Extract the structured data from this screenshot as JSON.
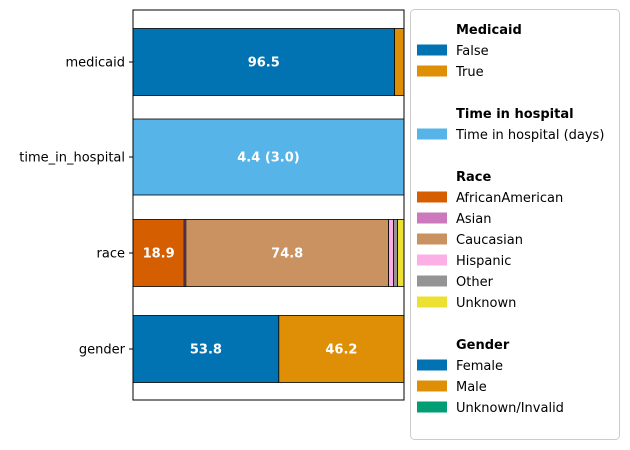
{
  "chart_data": {
    "type": "bar",
    "orientation": "horizontal",
    "stacked": true,
    "xlim": [
      0,
      100
    ],
    "grid": false,
    "legend_placement": "right",
    "categories": [
      "medicaid",
      "time_in_hospital",
      "race",
      "gender"
    ],
    "rows": [
      {
        "category": "medicaid",
        "segments": [
          {
            "legend_group": 0,
            "label": "False",
            "value": 96.5,
            "color": "#0173b2",
            "text": "96.5"
          },
          {
            "legend_group": 0,
            "label": "True",
            "value": 3.5,
            "color": "#de8f05",
            "text": ""
          }
        ]
      },
      {
        "category": "time_in_hospital",
        "segments": [
          {
            "legend_group": 1,
            "label": "Time in hospital (days)",
            "value": 100,
            "color": "#56b4e9",
            "text": "4.4 (3.0)"
          }
        ]
      },
      {
        "category": "race",
        "segments": [
          {
            "legend_group": 2,
            "label": "AfricanAmerican",
            "value": 18.9,
            "color": "#d55e00",
            "text": "18.9"
          },
          {
            "legend_group": 2,
            "label": "Asian",
            "value": 0.6,
            "color": "#cc78bc",
            "text": ""
          },
          {
            "legend_group": 2,
            "label": "Caucasian",
            "value": 74.8,
            "color": "#ca9161",
            "text": "74.8"
          },
          {
            "legend_group": 2,
            "label": "Hispanic",
            "value": 1.8,
            "color": "#fbafe4",
            "text": ""
          },
          {
            "legend_group": 2,
            "label": "Other",
            "value": 1.5,
            "color": "#949494",
            "text": ""
          },
          {
            "legend_group": 2,
            "label": "Unknown",
            "value": 2.4,
            "color": "#ece133",
            "text": ""
          }
        ]
      },
      {
        "category": "gender",
        "segments": [
          {
            "legend_group": 3,
            "label": "Female",
            "value": 53.8,
            "color": "#0173b2",
            "text": "53.8"
          },
          {
            "legend_group": 3,
            "label": "Male",
            "value": 46.2,
            "color": "#de8f05",
            "text": "46.2"
          },
          {
            "legend_group": 3,
            "label": "Unknown/Invalid",
            "value": 0.0,
            "color": "#029e73",
            "text": ""
          }
        ]
      }
    ],
    "legend": [
      {
        "title": "Medicaid",
        "items": [
          {
            "label": "False",
            "color": "#0173b2"
          },
          {
            "label": "True",
            "color": "#de8f05"
          }
        ]
      },
      {
        "title": "Time in hospital",
        "items": [
          {
            "label": "Time in hospital (days)",
            "color": "#56b4e9"
          }
        ]
      },
      {
        "title": "Race",
        "items": [
          {
            "label": "AfricanAmerican",
            "color": "#d55e00"
          },
          {
            "label": "Asian",
            "color": "#cc78bc"
          },
          {
            "label": "Caucasian",
            "color": "#ca9161"
          },
          {
            "label": "Hispanic",
            "color": "#fbafe4"
          },
          {
            "label": "Other",
            "color": "#949494"
          },
          {
            "label": "Unknown",
            "color": "#ece133"
          }
        ]
      },
      {
        "title": "Gender",
        "items": [
          {
            "label": "Female",
            "color": "#0173b2"
          },
          {
            "label": "Male",
            "color": "#de8f05"
          },
          {
            "label": "Unknown/Invalid",
            "color": "#029e73"
          }
        ]
      }
    ]
  }
}
